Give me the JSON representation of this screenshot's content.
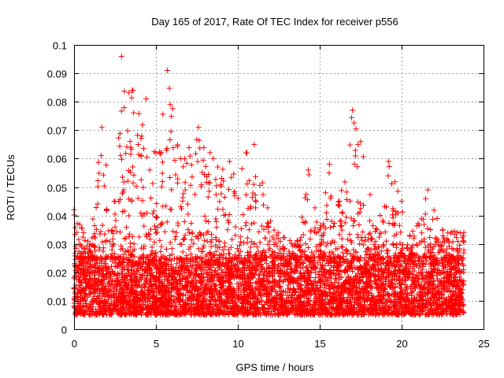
{
  "chart_data": {
    "type": "scatter",
    "title": "Day 165 of 2017, Rate Of TEC Index for receiver p556",
    "xlabel": "GPS time / hours",
    "ylabel": "ROTI / TECUs",
    "xlim": [
      0,
      25
    ],
    "ylim": [
      0,
      0.1
    ],
    "xticks": [
      "0",
      "5",
      "10",
      "15",
      "20",
      "25"
    ],
    "yticks": [
      "0",
      "0.01",
      "0.02",
      "0.03",
      "0.04",
      "0.05",
      "0.06",
      "0.07",
      "0.08",
      "0.09",
      "0.1"
    ],
    "grid": true,
    "marker": "plus",
    "series_color": "#ff0000",
    "x_data_range": [
      0,
      23.8
    ],
    "typical_band": [
      0.005,
      0.025
    ],
    "envelope": [
      {
        "x": 0.0,
        "upper": 0.042
      },
      {
        "x": 1.0,
        "upper": 0.03
      },
      {
        "x": 1.7,
        "upper": 0.071
      },
      {
        "x": 2.5,
        "upper": 0.045
      },
      {
        "x": 2.9,
        "upper": 0.096
      },
      {
        "x": 3.6,
        "upper": 0.084
      },
      {
        "x": 4.4,
        "upper": 0.081
      },
      {
        "x": 5.0,
        "upper": 0.062
      },
      {
        "x": 5.7,
        "upper": 0.091
      },
      {
        "x": 6.5,
        "upper": 0.06
      },
      {
        "x": 7.6,
        "upper": 0.071
      },
      {
        "x": 8.5,
        "upper": 0.06
      },
      {
        "x": 9.5,
        "upper": 0.059
      },
      {
        "x": 10.5,
        "upper": 0.062
      },
      {
        "x": 11.0,
        "upper": 0.065
      },
      {
        "x": 12.0,
        "upper": 0.038
      },
      {
        "x": 13.5,
        "upper": 0.03
      },
      {
        "x": 14.3,
        "upper": 0.056
      },
      {
        "x": 15.0,
        "upper": 0.035
      },
      {
        "x": 15.6,
        "upper": 0.058
      },
      {
        "x": 16.2,
        "upper": 0.045
      },
      {
        "x": 17.0,
        "upper": 0.077
      },
      {
        "x": 17.5,
        "upper": 0.066
      },
      {
        "x": 18.5,
        "upper": 0.035
      },
      {
        "x": 19.2,
        "upper": 0.059
      },
      {
        "x": 20.0,
        "upper": 0.045
      },
      {
        "x": 20.5,
        "upper": 0.033
      },
      {
        "x": 21.6,
        "upper": 0.049
      },
      {
        "x": 22.5,
        "upper": 0.035
      },
      {
        "x": 23.8,
        "upper": 0.034
      }
    ]
  }
}
